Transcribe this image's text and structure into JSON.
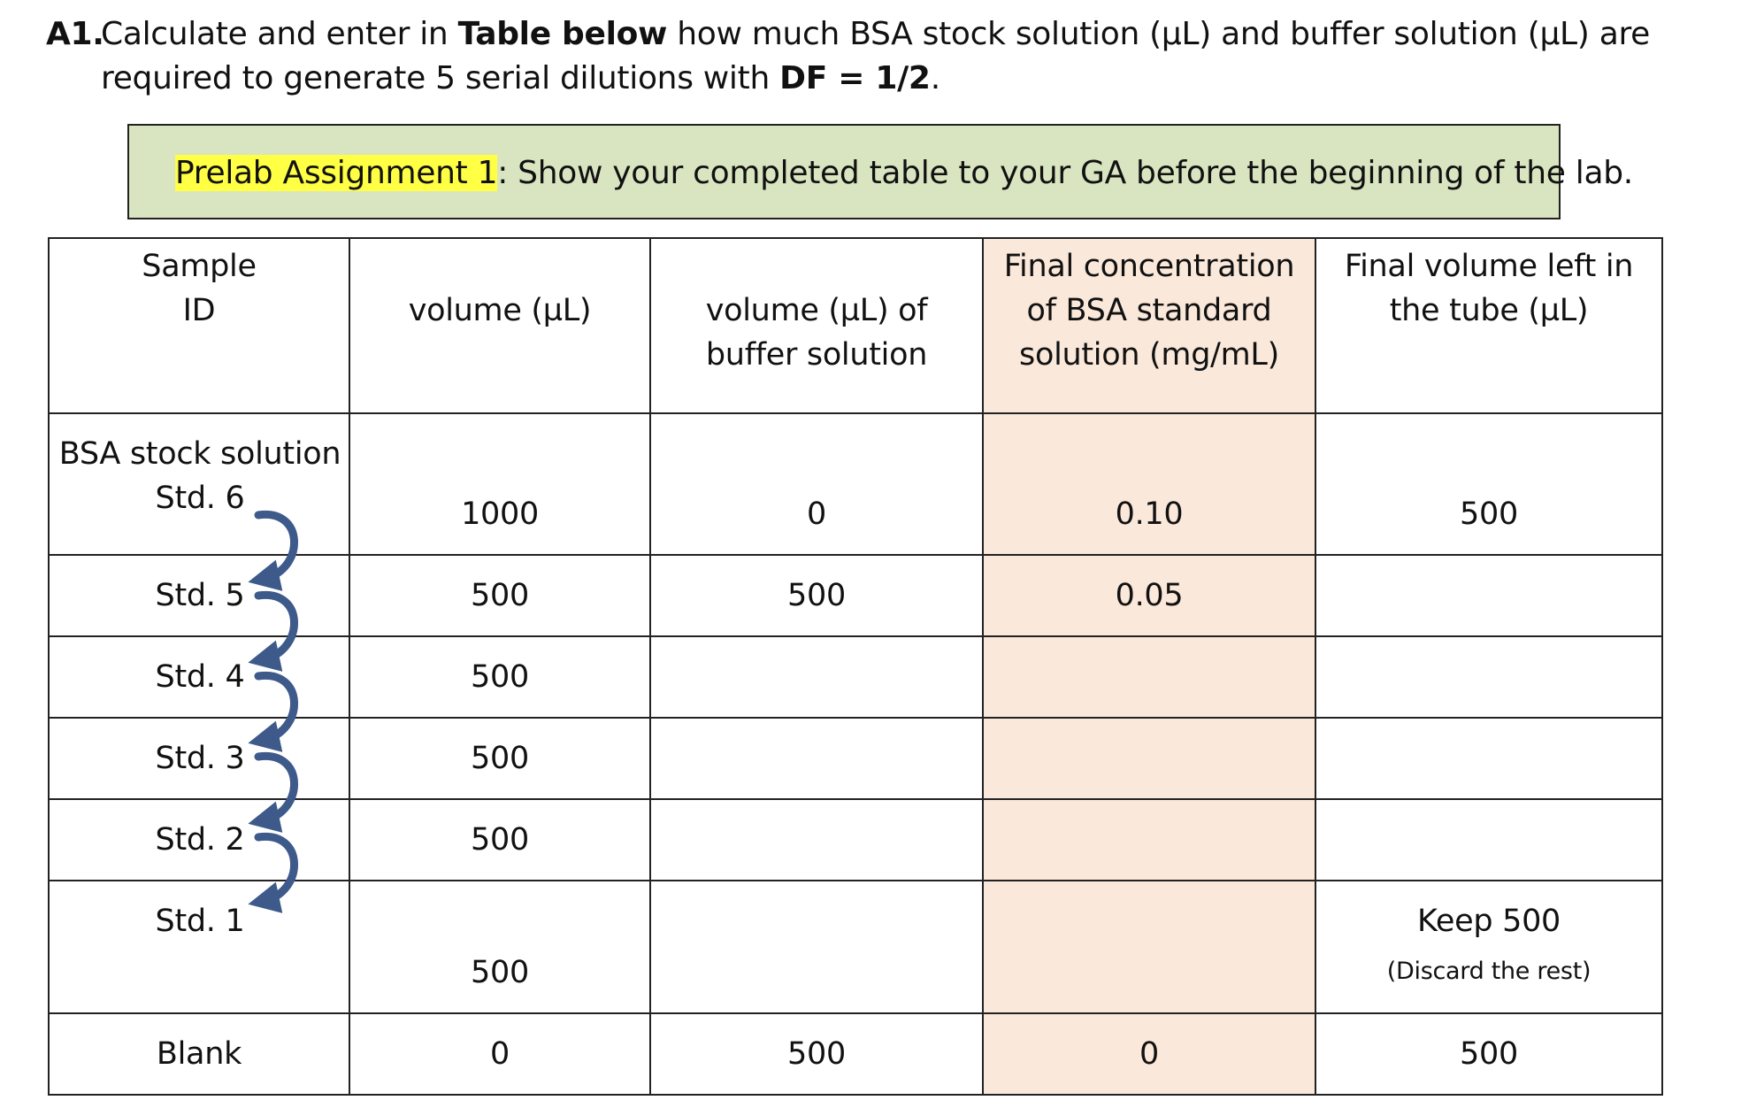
{
  "question": {
    "number": "A1.",
    "text_part1": "Calculate and enter in ",
    "text_bold1": "Table below",
    "text_part2": " how much BSA stock solution (µL) and buffer solution (µL) are required to generate 5 serial dilutions with ",
    "text_bold2": "DF = 1/2",
    "text_part3": "."
  },
  "prelab": {
    "highlight": "Prelab Assignment 1",
    "text": ": Show your completed table to your GA before the beginning of the lab."
  },
  "table": {
    "headers": {
      "sample_id": "Sample ID",
      "volume": "volume (µL)",
      "buffer": "volume (µL) of buffer solution",
      "concentration": "Final concentration of BSA standard solution (mg/mL)",
      "final_volume": "Final volume left in the tube (µL)"
    },
    "rows": [
      {
        "sample_line1": "BSA stock solution",
        "sample_line2": "Std. 6",
        "volume": "1000",
        "buffer": "0",
        "concentration": "0.10",
        "final_volume": "500"
      },
      {
        "sample_line1": "",
        "sample_line2": "Std. 5",
        "volume": "500",
        "buffer": "500",
        "concentration": "0.05",
        "final_volume": ""
      },
      {
        "sample_line1": "",
        "sample_line2": "Std. 4",
        "volume": "500",
        "buffer": "",
        "concentration": "",
        "final_volume": ""
      },
      {
        "sample_line1": "",
        "sample_line2": "Std. 3",
        "volume": "500",
        "buffer": "",
        "concentration": "",
        "final_volume": ""
      },
      {
        "sample_line1": "",
        "sample_line2": "Std. 2",
        "volume": "500",
        "buffer": "",
        "concentration": "",
        "final_volume": ""
      },
      {
        "sample_line1": "",
        "sample_line2": "Std. 1",
        "volume": "500",
        "buffer": "",
        "concentration": "",
        "final_volume": "Keep 500",
        "final_volume_note": "(Discard the rest)"
      },
      {
        "sample_line1": "",
        "sample_line2": "Blank",
        "volume": "0",
        "buffer": "500",
        "concentration": "0",
        "final_volume": "500"
      }
    ]
  },
  "colors": {
    "box_fill": "#d9e5c0",
    "highlight": "#ffff44",
    "concentration_column": "#fae8da",
    "arrow": "#3d5a8a"
  },
  "icons": {
    "transfer_arrow": "curved-arrow-icon"
  }
}
